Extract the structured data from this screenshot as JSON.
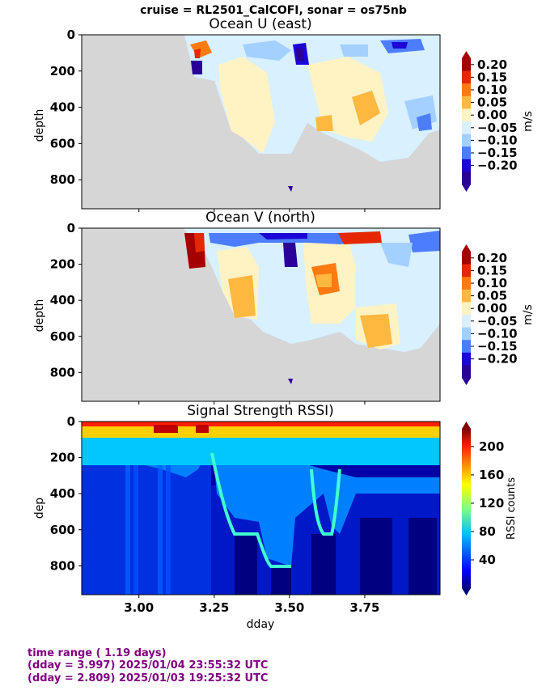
{
  "suptitle": "cruise = RL2501_CalCOFI,  sonar = os75nb",
  "footer": {
    "line1": "time range ( 1.19 days)",
    "line2": "(dday = 3.997) 2025/01/04 23:55:32 UTC",
    "line3": "(dday = 2.809) 2025/01/03 19:25:32 UTC"
  },
  "colors": {
    "nodata": "#d6d6d6",
    "text_footer": "#800080"
  },
  "chart_data": [
    {
      "type": "heatmap",
      "title": "Ocean U (east)",
      "ylabel": "depth",
      "xlabel": "",
      "xlim": [
        2.81,
        4.0
      ],
      "ylim": [
        960,
        0
      ],
      "yticks": [
        "0",
        "200",
        "400",
        "600",
        "800"
      ],
      "ytick_values": [
        0,
        200,
        400,
        600,
        800
      ],
      "xticks": [
        "3.00",
        "3.25",
        "3.50",
        "3.75"
      ],
      "xticks_labeled": false,
      "xtick_values": [
        3.0,
        3.25,
        3.5,
        3.75
      ],
      "colorbar": {
        "label": "m/s",
        "ticks": [
          "0.20",
          "0.15",
          "0.10",
          "0.05",
          "0.00",
          "−0.05",
          "−0.10",
          "−0.15",
          "−0.20"
        ],
        "colors": [
          "#a50000",
          "#e62800",
          "#ff7a10",
          "#ffb840",
          "#fff3c4",
          "#d8f0ff",
          "#a3d0ff",
          "#4d7dff",
          "#1c06d6",
          "#2a0099"
        ]
      },
      "coverage_depth": [
        {
          "dday": 3.16,
          "depth": 230
        },
        {
          "dday": 3.22,
          "depth": 300
        },
        {
          "dday": 3.3,
          "depth": 570
        },
        {
          "dday": 3.4,
          "depth": 640
        },
        {
          "dday": 3.5,
          "depth": 650
        },
        {
          "dday": 3.58,
          "depth": 540
        },
        {
          "dday": 3.7,
          "depth": 580
        },
        {
          "dday": 3.8,
          "depth": 680
        },
        {
          "dday": 3.9,
          "depth": 640
        },
        {
          "dday": 3.97,
          "depth": 560
        }
      ]
    },
    {
      "type": "heatmap",
      "title": "Ocean V (north)",
      "ylabel": "depth",
      "xlabel": "",
      "xlim": [
        2.81,
        4.0
      ],
      "ylim": [
        960,
        0
      ],
      "yticks": [
        "0",
        "200",
        "400",
        "600",
        "800"
      ],
      "ytick_values": [
        0,
        200,
        400,
        600,
        800
      ],
      "xticks": [
        "3.00",
        "3.25",
        "3.50",
        "3.75"
      ],
      "xticks_labeled": false,
      "xtick_values": [
        3.0,
        3.25,
        3.5,
        3.75
      ],
      "colorbar": {
        "label": "m/s",
        "ticks": [
          "0.20",
          "0.15",
          "0.10",
          "0.05",
          "0.00",
          "−0.05",
          "−0.10",
          "−0.15",
          "−0.20"
        ],
        "colors": [
          "#a50000",
          "#e62800",
          "#ff7a10",
          "#ffb840",
          "#fff3c4",
          "#d8f0ff",
          "#a3d0ff",
          "#4d7dff",
          "#1c06d6",
          "#2a0099"
        ]
      }
    },
    {
      "type": "heatmap",
      "title": "Signal Strength RSSI)",
      "ylabel": "dep",
      "xlabel": "dday",
      "xlim": [
        2.81,
        4.0
      ],
      "ylim": [
        960,
        0
      ],
      "yticks": [
        "0",
        "200",
        "400",
        "600",
        "800"
      ],
      "ytick_values": [
        0,
        200,
        400,
        600,
        800
      ],
      "xticks": [
        "3.00",
        "3.25",
        "3.50",
        "3.75"
      ],
      "xtick_values": [
        3.0,
        3.25,
        3.5,
        3.75
      ],
      "colorbar": {
        "label": "RSSI counts",
        "ticks": [
          "200",
          "160",
          "120",
          "80",
          "40"
        ],
        "tick_values": [
          200,
          160,
          120,
          80,
          40
        ],
        "range": [
          0,
          225
        ]
      }
    }
  ]
}
